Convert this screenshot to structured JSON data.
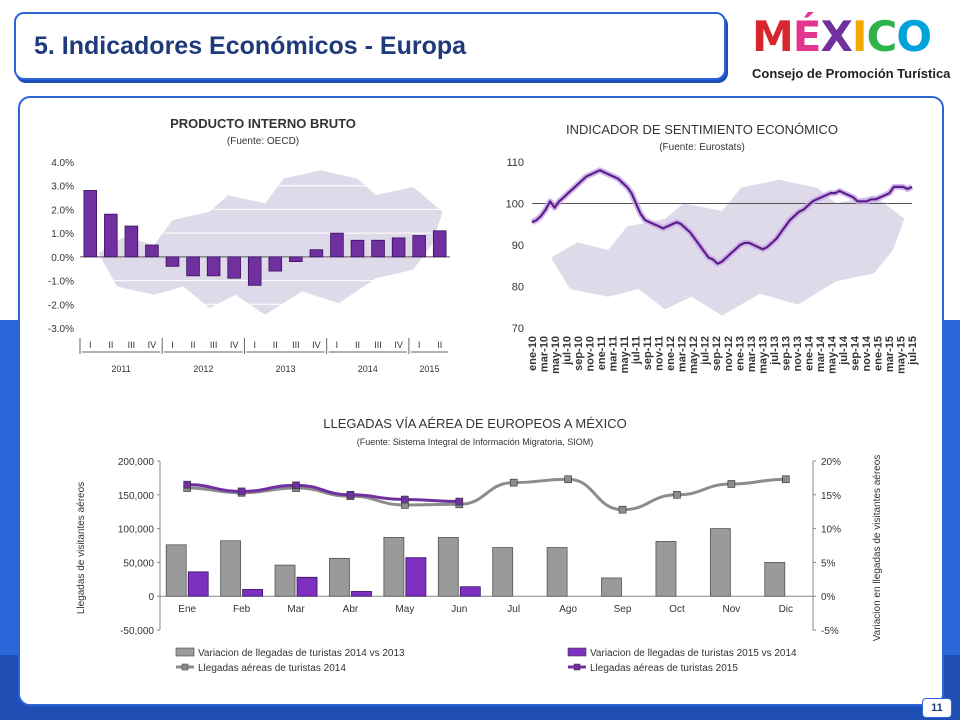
{
  "page": {
    "title": "5. Indicadores Económicos - Europa",
    "logo_text": "MÉXICO",
    "logo_subtitle": "Consejo de Promoción Turística",
    "page_number": "11",
    "colors": {
      "accent_blue": "#2a66d8",
      "dark_blue": "#1f3a7a",
      "purple": "#7030a0",
      "gray": "#8c8c8c",
      "map": "#d9d3e6"
    }
  },
  "chart_data": [
    {
      "type": "bar",
      "title": "PRODUCTO INTERNO BRUTO",
      "subtitle": "(Fuente: OECD)",
      "y_ticks": [
        "4.0%",
        "3.0%",
        "2.0%",
        "1.0%",
        "0.0%",
        "-1.0%",
        "-2.0%",
        "-3.0%"
      ],
      "ylim": [
        -3.0,
        4.0
      ],
      "categories": [
        "I",
        "II",
        "III",
        "IV",
        "I",
        "II",
        "III",
        "IV",
        "I",
        "II",
        "III",
        "IV",
        "I",
        "II",
        "III",
        "IV",
        "I",
        "II"
      ],
      "year_groups": [
        {
          "label": "2011",
          "count": 4
        },
        {
          "label": "2012",
          "count": 4
        },
        {
          "label": "2013",
          "count": 4
        },
        {
          "label": "2014",
          "count": 4
        },
        {
          "label": "2015",
          "count": 2
        }
      ],
      "values": [
        2.8,
        1.8,
        1.3,
        0.5,
        -0.4,
        -0.8,
        -0.8,
        -0.9,
        -1.2,
        -0.6,
        -0.2,
        0.3,
        1.0,
        0.7,
        0.7,
        0.8,
        0.9,
        1.1
      ]
    },
    {
      "type": "line",
      "title": "INDICADOR DE SENTIMIENTO ECONÓMICO",
      "subtitle": "(Fuente: Eurostats)",
      "y_ticks": [
        "110",
        "100",
        "90",
        "80",
        "70"
      ],
      "ylim": [
        70,
        110
      ],
      "reference_line": 100,
      "x_labels": [
        "ene-10",
        "mar-10",
        "may-10",
        "jul-10",
        "sep-10",
        "nov-10",
        "ene-11",
        "mar-11",
        "may-11",
        "jul-11",
        "sep-11",
        "nov-11",
        "ene-12",
        "mar-12",
        "may-12",
        "jul-12",
        "sep-12",
        "nov-12",
        "ene-13",
        "mar-13",
        "may-13",
        "jul-13",
        "sep-13",
        "nov-13",
        "ene-14",
        "mar-14",
        "may-14",
        "jul-14",
        "sep-14",
        "nov-14",
        "ene-15",
        "mar-15",
        "may-15",
        "jul-15"
      ],
      "values": [
        95.5,
        96,
        97,
        98.5,
        100.5,
        99,
        100.5,
        101.5,
        102.5,
        103.5,
        104.5,
        105.5,
        106.5,
        107,
        107.5,
        108,
        107.5,
        107,
        106.5,
        106,
        105,
        104,
        102.5,
        100,
        97.5,
        96,
        95.5,
        95,
        94.5,
        94,
        94.5,
        95,
        95.5,
        95,
        94,
        93,
        91.5,
        90,
        88.5,
        87,
        86.5,
        85.5,
        86,
        87,
        88,
        89,
        90,
        90.5,
        90.5,
        90,
        89.5,
        89,
        89.5,
        90.5,
        91.5,
        93,
        94.5,
        96,
        97,
        98,
        98.5,
        99.5,
        100.5,
        101,
        101.5,
        102,
        102.5,
        102.5,
        103,
        102.5,
        102,
        101.5,
        100.5,
        100.5,
        100.5,
        101,
        101,
        101.5,
        102,
        102.5,
        104,
        104,
        104,
        103.5,
        104
      ]
    },
    {
      "type": "bar",
      "title": "LLEGADAS VÍA AÉREA DE EUROPEOS A MÉXICO",
      "subtitle": "(Fuente: Sistema Integral de Información Migratoria, SIOM)",
      "ylabel": "Llegadas de visitantes aéreos",
      "y2label": "Variacion en llegadas de visitantes aéreos",
      "y_ticks": [
        "200,000",
        "150,000",
        "100,000",
        "50,000",
        "0",
        "-50,000"
      ],
      "y2_ticks": [
        "20%",
        "15%",
        "10%",
        "5%",
        "0%",
        "-5%"
      ],
      "ylim": [
        -50000,
        200000
      ],
      "y2lim": [
        -5,
        20
      ],
      "categories": [
        "Ene",
        "Feb",
        "Mar",
        "Abr",
        "May",
        "Jun",
        "Jul",
        "Ago",
        "Sep",
        "Oct",
        "Nov",
        "Dic"
      ],
      "series": [
        {
          "name": "Variacion de llegadas de turistas 2014 vs 2013",
          "axis": "left",
          "kind": "bar",
          "values": [
            76000,
            82000,
            46000,
            56000,
            87000,
            87000,
            72000,
            72000,
            27000,
            81000,
            100000,
            50000
          ]
        },
        {
          "name": "Variacion de llegadas de turistas 2015 vs 2014",
          "axis": "left",
          "kind": "bar",
          "values": [
            36000,
            10000,
            28000,
            7000,
            57000,
            14000,
            null,
            null,
            null,
            null,
            null,
            null
          ]
        },
        {
          "name": "Llegadas aéreas de turistas 2014",
          "axis": "right",
          "kind": "line",
          "values": [
            16,
            15.3,
            16,
            14.8,
            13.5,
            13.6,
            16.8,
            17.3,
            12.8,
            15,
            16.6,
            17.3
          ]
        },
        {
          "name": "Llegadas aéreas de turistas 2015",
          "axis": "right",
          "kind": "line",
          "values": [
            16.5,
            15.5,
            16.4,
            15,
            14.3,
            14,
            null,
            null,
            null,
            null,
            null,
            null
          ]
        }
      ]
    }
  ]
}
